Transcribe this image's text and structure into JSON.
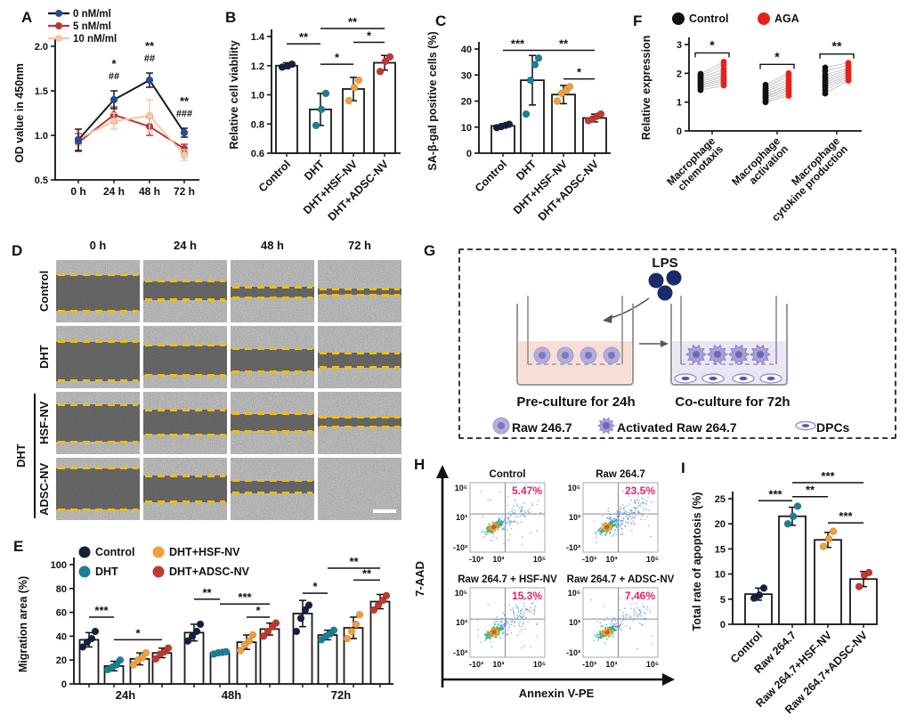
{
  "panels": {
    "A": {
      "label": "A",
      "ylabel": "OD value in 450nm",
      "ylim": [
        0.5,
        2.0
      ],
      "yticks": [
        "0.5",
        "1.0",
        "1.5",
        "2.0"
      ],
      "categories": [
        "0 h",
        "24 h",
        "48 h",
        "72 h"
      ],
      "series": [
        {
          "name": "0 nM/ml",
          "line_color": "#1a1a1a",
          "dot_color": "#1e4e9d",
          "values": [
            0.95,
            1.4,
            1.62,
            1.03
          ],
          "err": [
            0.12,
            0.1,
            0.08,
            0.05
          ]
        },
        {
          "name": "5 nM/ml",
          "line_color": "#b43a3a",
          "dot_color": "#b43a3a",
          "values": [
            0.92,
            1.23,
            1.1,
            0.85
          ],
          "err": [
            0.1,
            0.09,
            0.1,
            0.05
          ]
        },
        {
          "name": "10 nM/ml",
          "line_color": "#f8c7a4",
          "dot_color": "#f8c7a4",
          "values": [
            0.96,
            1.16,
            1.22,
            0.78
          ],
          "err": [
            0.07,
            0.09,
            0.18,
            0.06
          ]
        }
      ],
      "annotations": [
        {
          "ci": 1,
          "rows": [
            "*",
            "##"
          ]
        },
        {
          "ci": 2,
          "rows": [
            "**",
            "##"
          ]
        },
        {
          "ci": 3,
          "rows": [
            "**",
            "###"
          ]
        }
      ]
    },
    "B": {
      "label": "B",
      "ylabel": "Relative cell viability",
      "ylim": [
        0.6,
        1.4
      ],
      "yticks": [
        "0.6",
        "0.8",
        "1.0",
        "1.2",
        "1.4"
      ],
      "categories": [
        "Control",
        "DHT",
        "DHT+HSF-NV",
        "DHT+ADSC-NV"
      ],
      "values": [
        1.2,
        0.9,
        1.04,
        1.22
      ],
      "err": [
        0.02,
        0.11,
        0.08,
        0.05
      ],
      "dots": [
        [
          1.19,
          1.2,
          1.21
        ],
        [
          0.79,
          0.9,
          1.01
        ],
        [
          0.96,
          1.05,
          1.1
        ],
        [
          1.16,
          1.23,
          1.26
        ]
      ],
      "dot_colors": [
        "#14213d",
        "#1d7f96",
        "#f0a03c",
        "#bf3a31"
      ],
      "sig": [
        {
          "a": 0,
          "b": 1,
          "v": 1.35,
          "label": "**"
        },
        {
          "a": 1,
          "b": 2,
          "v": 1.21,
          "label": "*"
        },
        {
          "a": 1,
          "b": 3,
          "v": 1.455,
          "label": "**"
        },
        {
          "a": 2,
          "b": 3,
          "v": 1.36,
          "label": "*"
        }
      ]
    },
    "C": {
      "label": "C",
      "ylabel": "SA-β-gal positive cells (%)",
      "ylim": [
        0,
        40
      ],
      "yticks": [
        "0",
        "10",
        "20",
        "30",
        "40"
      ],
      "categories": [
        "Control",
        "DHT",
        "DHT+HSF-NV",
        "DHT+ADSC-NV"
      ],
      "values": [
        10.5,
        28,
        22.5,
        13.5
      ],
      "err": [
        0.8,
        9.5,
        3.5,
        1.5
      ],
      "dots": [
        [
          9.8,
          10.2,
          10.7,
          11.1
        ],
        [
          15,
          28,
          34,
          36.5
        ],
        [
          20,
          23,
          24,
          25.5
        ],
        [
          12.5,
          13.2,
          14.2,
          15
        ]
      ],
      "dot_colors": [
        "#14213d",
        "#1d7f96",
        "#f0a03c",
        "#bf3a31"
      ],
      "sig": [
        {
          "a": 0,
          "b": 1,
          "v": 39.5,
          "label": "***"
        },
        {
          "a": 1,
          "b": 3,
          "v": 39.5,
          "label": "**"
        },
        {
          "a": 2,
          "b": 3,
          "v": 28.5,
          "label": "*"
        }
      ]
    },
    "F": {
      "label": "F",
      "ylabel": "Relative expression",
      "ylim": [
        0,
        3
      ],
      "yticks": [
        "0",
        "1",
        "2",
        "3"
      ],
      "legend": [
        {
          "name": "Control",
          "color": "#111111"
        },
        {
          "name": "AGA",
          "color": "#e8211d"
        }
      ],
      "categories": [
        [
          "Macrophage",
          "chemotaxis"
        ],
        [
          "Macrophage",
          "activation"
        ],
        [
          "Macrophage",
          "cytokine production"
        ]
      ],
      "pairs": [
        {
          "control": [
            1.42,
            1.5,
            1.55,
            1.6,
            1.65,
            1.72,
            1.78,
            1.85,
            1.92,
            1.98
          ],
          "aga": [
            1.58,
            1.66,
            1.74,
            1.8,
            1.88,
            1.95,
            2.05,
            2.15,
            2.28,
            2.4
          ],
          "sig": "*"
        },
        {
          "control": [
            1.0,
            1.05,
            1.12,
            1.18,
            1.22,
            1.28,
            1.35,
            1.42,
            1.5,
            1.6
          ],
          "aga": [
            1.22,
            1.3,
            1.38,
            1.45,
            1.52,
            1.6,
            1.7,
            1.8,
            1.92,
            2.0
          ],
          "sig": "*"
        },
        {
          "control": [
            1.3,
            1.42,
            1.52,
            1.6,
            1.68,
            1.76,
            1.85,
            1.95,
            2.08,
            2.2
          ],
          "aga": [
            1.75,
            1.82,
            1.88,
            1.94,
            2.0,
            2.06,
            2.12,
            2.18,
            2.28,
            2.36
          ],
          "sig": "**"
        }
      ]
    },
    "D": {
      "label": "D",
      "col_headers": [
        "0 h",
        "24 h",
        "48 h",
        "72 h"
      ],
      "row_labels": [
        "Control",
        "DHT",
        "HSF-NV",
        "ADSC-NV"
      ],
      "group_label": "DHT",
      "line_color": "#eebf10",
      "gaps": [
        [
          [
            24,
            82
          ],
          [
            34,
            64
          ],
          [
            43,
            60
          ],
          [
            46,
            56
          ]
        ],
        [
          [
            25,
            88
          ],
          [
            31,
            79
          ],
          [
            37,
            73
          ],
          [
            43,
            67
          ]
        ],
        [
          [
            20,
            80
          ],
          [
            29,
            69
          ],
          [
            35,
            63
          ],
          [
            41,
            56
          ]
        ],
        [
          [
            17,
            83
          ],
          [
            29,
            71
          ],
          [
            37,
            57
          ],
          null
        ]
      ]
    },
    "E": {
      "label": "E",
      "ylabel": "Migration area (%)",
      "ylim": [
        0,
        100
      ],
      "yticks": [
        "0",
        "20",
        "40",
        "60",
        "80",
        "100"
      ],
      "groups": [
        "24h",
        "48h",
        "72h"
      ],
      "series": [
        {
          "name": "Control",
          "color": "#14213d"
        },
        {
          "name": "DHT",
          "color": "#1d7f96"
        },
        {
          "name": "DHT+HSF-NV",
          "color": "#f0a03c"
        },
        {
          "name": "DHT+ADSC-NV",
          "color": "#bf3a31"
        }
      ],
      "values": [
        [
          37,
          15,
          21,
          26
        ],
        [
          43,
          26,
          35,
          46
        ],
        [
          59,
          41,
          47,
          69
        ]
      ],
      "err": [
        [
          6,
          4,
          5,
          4
        ],
        [
          7,
          1.5,
          6,
          5
        ],
        [
          11,
          4,
          9,
          6
        ]
      ],
      "dots": [
        [
          [
            31,
            35,
            38,
            44
          ],
          [
            12,
            14,
            16,
            20
          ],
          [
            16,
            20,
            22,
            26
          ],
          [
            21,
            25,
            27,
            30
          ]
        ],
        [
          [
            36,
            40,
            44,
            50
          ],
          [
            25,
            26,
            26.5,
            27
          ],
          [
            28,
            33,
            36,
            41
          ],
          [
            40,
            44,
            48,
            51
          ]
        ],
        [
          [
            44,
            55,
            62,
            66
          ],
          [
            37,
            40,
            42,
            45
          ],
          [
            38,
            44,
            50,
            58
          ],
          [
            62,
            66,
            70,
            74
          ]
        ]
      ],
      "sig": [
        {
          "g": 0,
          "a": 0,
          "b": 1,
          "v": 56,
          "label": "***"
        },
        {
          "g": 0,
          "a": 1,
          "b": 3,
          "v": 37,
          "label": "*"
        },
        {
          "g": 1,
          "a": 0,
          "b": 1,
          "v": 71,
          "label": "**"
        },
        {
          "g": 1,
          "a": 1,
          "b": 3,
          "v": 67,
          "label": "***"
        },
        {
          "g": 1,
          "a": 2,
          "b": 3,
          "v": 56,
          "label": "*"
        },
        {
          "g": 2,
          "a": 0,
          "b": 1,
          "v": 76,
          "label": "*"
        },
        {
          "g": 2,
          "a": 1,
          "b": 3,
          "v": 97,
          "label": "**"
        },
        {
          "g": 2,
          "a": 2,
          "b": 3,
          "v": 87,
          "label": "**"
        }
      ]
    },
    "G": {
      "label": "G",
      "lps": "LPS",
      "left_caption": "Pre-culture for 24h",
      "right_caption": "Co-culture for 72h",
      "legend": [
        {
          "name": "Raw 246.7"
        },
        {
          "name": "Activated Raw 264.7"
        },
        {
          "name": "DPCs"
        }
      ]
    },
    "H": {
      "label": "H",
      "xlabel": "Annexin V-PE",
      "ylabel": "7-AAD",
      "xticks": [
        "-10³",
        "10³",
        "10⁵"
      ],
      "yticks": [
        "10⁵",
        "10³",
        "-10³"
      ],
      "pct_color": "#e5226b",
      "palette": [
        "#e0541e",
        "#f2a23a",
        "#66b43e",
        "#2fa8b0",
        "#5b8fd9"
      ],
      "plots": [
        {
          "title": "Control",
          "pct": "5.47%",
          "tail": 0.3,
          "seed": 11
        },
        {
          "title": "Raw 264.7",
          "pct": "23.5%",
          "tail": 1.0,
          "seed": 22
        },
        {
          "title": "Raw 264.7 + HSF-NV",
          "pct": "15.3%",
          "tail": 0.72,
          "seed": 33
        },
        {
          "title": "Raw 264.7 + ADSC-NV",
          "pct": "7.46%",
          "tail": 0.4,
          "seed": 44
        }
      ]
    },
    "I": {
      "label": "I",
      "ylabel": "Total rate of apoptosis (%)",
      "ylim": [
        0,
        25
      ],
      "yticks": [
        "0",
        "5",
        "10",
        "15",
        "20",
        "25"
      ],
      "categories": [
        "Control",
        "Raw 264.7",
        "Raw 264.7+HSF-NV",
        "Raw 264.7+ADSC-NV"
      ],
      "values": [
        6.0,
        21.5,
        16.8,
        9.0
      ],
      "err": [
        1.2,
        1.8,
        1.5,
        1.5
      ],
      "dots": [
        [
          5.2,
          5.8,
          7.2
        ],
        [
          20,
          21.5,
          23.5
        ],
        [
          15.5,
          17,
          18.5
        ],
        [
          7.5,
          9.8,
          10.3
        ]
      ],
      "dot_colors": [
        "#14213d",
        "#1d7f96",
        "#f0a03c",
        "#bf3a31"
      ],
      "sig": [
        {
          "a": 0,
          "b": 1,
          "v": 24.6,
          "label": "***"
        },
        {
          "a": 1,
          "b": 2,
          "v": 25.4,
          "label": "**"
        },
        {
          "a": 1,
          "b": 3,
          "v": 28.2,
          "label": "***"
        },
        {
          "a": 2,
          "b": 3,
          "v": 20.2,
          "label": "***"
        }
      ]
    }
  }
}
